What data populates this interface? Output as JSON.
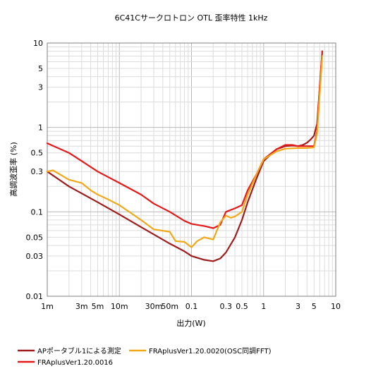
{
  "chart_data": {
    "type": "line",
    "title": "6C41Cサークロトロン OTL 歪率特性 1kHz",
    "xlabel": "出力(W)",
    "ylabel": "高調波歪率 (%)",
    "xscale": "log",
    "yscale": "log",
    "xlim": [
      0.001,
      10
    ],
    "ylim": [
      0.01,
      10
    ],
    "grid": true,
    "legend_position": "bottom",
    "x_tick_labels": [
      {
        "v": 0.001,
        "t": "1m"
      },
      {
        "v": 0.003,
        "t": "3m"
      },
      {
        "v": 0.005,
        "t": "5m"
      },
      {
        "v": 0.01,
        "t": "10m"
      },
      {
        "v": 0.03,
        "t": "30m"
      },
      {
        "v": 0.05,
        "t": "50m"
      },
      {
        "v": 0.1,
        "t": "0.1"
      },
      {
        "v": 0.3,
        "t": "0.3"
      },
      {
        "v": 0.5,
        "t": "0.5"
      },
      {
        "v": 1,
        "t": "1"
      },
      {
        "v": 3,
        "t": "3"
      },
      {
        "v": 5,
        "t": "5"
      },
      {
        "v": 10,
        "t": "10"
      }
    ],
    "y_tick_labels": [
      {
        "v": 0.01,
        "t": "0.01"
      },
      {
        "v": 0.03,
        "t": "0.03"
      },
      {
        "v": 0.05,
        "t": "0.05"
      },
      {
        "v": 0.1,
        "t": "0.1"
      },
      {
        "v": 0.3,
        "t": "0.3"
      },
      {
        "v": 0.5,
        "t": "0.5"
      },
      {
        "v": 1,
        "t": "1"
      },
      {
        "v": 3,
        "t": "3"
      },
      {
        "v": 5,
        "t": "5"
      },
      {
        "v": 10,
        "t": "10"
      }
    ],
    "series": [
      {
        "name": "APポータブル1による測定",
        "color": "#a01c1c",
        "x": [
          0.001,
          0.002,
          0.005,
          0.01,
          0.02,
          0.05,
          0.08,
          0.1,
          0.15,
          0.2,
          0.25,
          0.3,
          0.4,
          0.5,
          0.6,
          0.8,
          1,
          1.5,
          2,
          2.5,
          3,
          3.5,
          4,
          4.5,
          5,
          5.5,
          6,
          6.3,
          6.5
        ],
        "y": [
          0.3,
          0.2,
          0.13,
          0.093,
          0.066,
          0.042,
          0.034,
          0.03,
          0.027,
          0.026,
          0.028,
          0.033,
          0.05,
          0.08,
          0.13,
          0.25,
          0.4,
          0.55,
          0.6,
          0.61,
          0.6,
          0.62,
          0.66,
          0.72,
          0.8,
          1.1,
          3.0,
          5.5,
          8.0
        ]
      },
      {
        "name": "FRAplusVer1.20.0016",
        "color": "#e41a1a",
        "x": [
          0.001,
          0.002,
          0.003,
          0.005,
          0.01,
          0.02,
          0.03,
          0.05,
          0.08,
          0.1,
          0.15,
          0.2,
          0.25,
          0.3,
          0.4,
          0.5,
          0.6,
          0.8,
          1,
          1.5,
          2,
          2.5,
          3,
          4,
          5,
          5.5,
          6,
          6.5
        ],
        "y": [
          0.65,
          0.5,
          0.4,
          0.3,
          0.22,
          0.16,
          0.125,
          0.1,
          0.078,
          0.072,
          0.068,
          0.064,
          0.07,
          0.1,
          0.11,
          0.12,
          0.18,
          0.28,
          0.42,
          0.55,
          0.62,
          0.62,
          0.6,
          0.6,
          0.6,
          0.9,
          3.0,
          8.0
        ]
      },
      {
        "name": "FRAplusVer1.20.0020(OSC同調FFT)",
        "color": "#f0a818",
        "x": [
          0.001,
          0.0012,
          0.002,
          0.003,
          0.004,
          0.005,
          0.007,
          0.01,
          0.02,
          0.03,
          0.05,
          0.06,
          0.08,
          0.1,
          0.12,
          0.15,
          0.2,
          0.25,
          0.3,
          0.35,
          0.4,
          0.5,
          0.6,
          0.8,
          1,
          1.5,
          2,
          3,
          4,
          5,
          5.5,
          6,
          6.5
        ],
        "y": [
          0.3,
          0.31,
          0.24,
          0.22,
          0.18,
          0.16,
          0.14,
          0.12,
          0.08,
          0.062,
          0.058,
          0.045,
          0.044,
          0.038,
          0.045,
          0.05,
          0.047,
          0.075,
          0.09,
          0.085,
          0.088,
          0.1,
          0.16,
          0.28,
          0.42,
          0.52,
          0.56,
          0.57,
          0.57,
          0.58,
          0.85,
          2.5,
          7.0
        ]
      }
    ]
  }
}
